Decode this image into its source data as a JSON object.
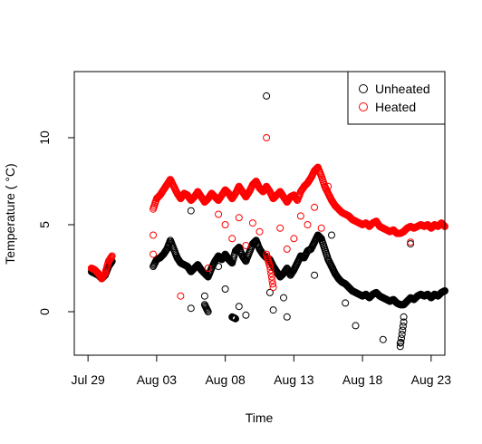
{
  "chart_data": {
    "type": "scatter",
    "title": "",
    "xlabel": "Time",
    "ylabel": "Temperature ( °C)",
    "x_start": "2023-07-28",
    "x_end": "2023-08-24",
    "x_ticks": [
      "Jul 29",
      "Aug 03",
      "Aug 08",
      "Aug 13",
      "Aug 18",
      "Aug 23"
    ],
    "x_tick_dates": [
      "2023-07-29",
      "2023-08-03",
      "2023-08-08",
      "2023-08-13",
      "2023-08-18",
      "2023-08-23"
    ],
    "ylim": [
      -2.5,
      13.8
    ],
    "y_ticks": [
      0,
      5,
      10
    ],
    "y_tick_labels": [
      "0",
      "5",
      "10"
    ],
    "grid": false,
    "legend_position": "top-right",
    "series": [
      {
        "name": "Unheated",
        "color": "#000000",
        "marker": "open-circle",
        "points": [
          [
            "2023-07-29 06:00",
            2.3
          ],
          [
            "2023-07-29 12:00",
            2.2
          ],
          [
            "2023-07-29 18:00",
            2.1
          ],
          [
            "2023-07-30 00:00",
            1.9
          ],
          [
            "2023-07-30 06:00",
            2.1
          ],
          [
            "2023-07-30 12:00",
            2.6
          ],
          [
            "2023-07-30 18:00",
            2.9
          ],
          [
            "2023-08-02 18:00",
            2.6
          ],
          [
            "2023-08-03 00:00",
            3.0
          ],
          [
            "2023-08-03 06:00",
            3.1
          ],
          [
            "2023-08-03 12:00",
            3.3
          ],
          [
            "2023-08-03 18:00",
            3.6
          ],
          [
            "2023-08-04 00:00",
            4.1
          ],
          [
            "2023-08-04 06:00",
            3.6
          ],
          [
            "2023-08-04 12:00",
            3.1
          ],
          [
            "2023-08-04 18:00",
            2.8
          ],
          [
            "2023-08-05 00:00",
            2.7
          ],
          [
            "2023-08-05 06:00",
            2.6
          ],
          [
            "2023-08-05 12:00",
            2.3
          ],
          [
            "2023-08-05 18:00",
            2.5
          ],
          [
            "2023-08-06 00:00",
            2.7
          ],
          [
            "2023-08-06 06:00",
            2.4
          ],
          [
            "2023-08-06 12:00",
            2.2
          ],
          [
            "2023-08-06 18:00",
            2.0
          ],
          [
            "2023-08-07 00:00",
            2.5
          ],
          [
            "2023-08-07 06:00",
            2.9
          ],
          [
            "2023-08-07 12:00",
            3.2
          ],
          [
            "2023-08-07 18:00",
            3.0
          ],
          [
            "2023-08-08 00:00",
            3.3
          ],
          [
            "2023-08-08 06:00",
            3.0
          ],
          [
            "2023-08-08 12:00",
            2.8
          ],
          [
            "2023-08-08 18:00",
            3.5
          ],
          [
            "2023-08-09 00:00",
            3.7
          ],
          [
            "2023-08-09 06:00",
            3.2
          ],
          [
            "2023-08-09 12:00",
            2.9
          ],
          [
            "2023-08-09 18:00",
            3.4
          ],
          [
            "2023-08-10 00:00",
            3.9
          ],
          [
            "2023-08-10 06:00",
            4.1
          ],
          [
            "2023-08-10 12:00",
            3.6
          ],
          [
            "2023-08-10 18:00",
            3.3
          ],
          [
            "2023-08-11 00:00",
            3.1
          ],
          [
            "2023-08-11 06:00",
            3.0
          ],
          [
            "2023-08-11 12:00",
            2.6
          ],
          [
            "2023-08-11 18:00",
            2.3
          ],
          [
            "2023-08-12 00:00",
            2.0
          ],
          [
            "2023-08-12 06:00",
            2.2
          ],
          [
            "2023-08-12 12:00",
            2.5
          ],
          [
            "2023-08-12 18:00",
            2.1
          ],
          [
            "2023-08-13 00:00",
            2.4
          ],
          [
            "2023-08-13 06:00",
            2.8
          ],
          [
            "2023-08-13 12:00",
            3.2
          ],
          [
            "2023-08-13 18:00",
            3.1
          ],
          [
            "2023-08-14 00:00",
            3.5
          ],
          [
            "2023-08-14 06:00",
            3.6
          ],
          [
            "2023-08-14 12:00",
            4.0
          ],
          [
            "2023-08-14 18:00",
            4.4
          ],
          [
            "2023-08-15 00:00",
            4.2
          ],
          [
            "2023-08-15 06:00",
            3.6
          ],
          [
            "2023-08-15 12:00",
            3.0
          ],
          [
            "2023-08-15 18:00",
            2.6
          ],
          [
            "2023-08-16 00:00",
            2.2
          ],
          [
            "2023-08-16 06:00",
            1.9
          ],
          [
            "2023-08-16 12:00",
            1.7
          ],
          [
            "2023-08-16 18:00",
            1.6
          ],
          [
            "2023-08-17 00:00",
            1.4
          ],
          [
            "2023-08-17 06:00",
            1.2
          ],
          [
            "2023-08-17 12:00",
            1.1
          ],
          [
            "2023-08-17 18:00",
            1.0
          ],
          [
            "2023-08-18 00:00",
            0.9
          ],
          [
            "2023-08-18 06:00",
            1.0
          ],
          [
            "2023-08-18 12:00",
            0.8
          ],
          [
            "2023-08-18 18:00",
            1.0
          ],
          [
            "2023-08-19 00:00",
            1.1
          ],
          [
            "2023-08-19 06:00",
            0.9
          ],
          [
            "2023-08-19 12:00",
            0.8
          ],
          [
            "2023-08-19 18:00",
            0.7
          ],
          [
            "2023-08-20 00:00",
            0.6
          ],
          [
            "2023-08-20 06:00",
            0.7
          ],
          [
            "2023-08-20 12:00",
            0.5
          ],
          [
            "2023-08-20 18:00",
            0.4
          ],
          [
            "2023-08-21 00:00",
            0.4
          ],
          [
            "2023-08-21 06:00",
            0.6
          ],
          [
            "2023-08-21 12:00",
            0.8
          ],
          [
            "2023-08-21 18:00",
            0.7
          ],
          [
            "2023-08-22 00:00",
            0.9
          ],
          [
            "2023-08-22 06:00",
            1.0
          ],
          [
            "2023-08-22 12:00",
            0.9
          ],
          [
            "2023-08-22 18:00",
            1.0
          ],
          [
            "2023-08-23 00:00",
            0.8
          ],
          [
            "2023-08-23 06:00",
            1.0
          ],
          [
            "2023-08-23 12:00",
            0.9
          ],
          [
            "2023-08-23 18:00",
            1.1
          ],
          [
            "2023-08-24 00:00",
            1.2
          ],
          [
            "2023-08-11 00:00",
            12.4
          ],
          [
            "2023-08-05 12:00",
            5.8
          ],
          [
            "2023-08-07 12:00",
            2.6
          ],
          [
            "2023-08-06 12:00",
            0.9
          ],
          [
            "2023-08-06 12:00",
            0.4
          ],
          [
            "2023-08-06 18:00",
            0.0
          ],
          [
            "2023-08-05 12:00",
            0.2
          ],
          [
            "2023-08-08 12:00",
            -0.3
          ],
          [
            "2023-08-08 18:00",
            -0.4
          ],
          [
            "2023-08-09 12:00",
            -0.2
          ],
          [
            "2023-08-09 00:00",
            0.3
          ],
          [
            "2023-08-08 00:00",
            1.3
          ],
          [
            "2023-08-11 12:00",
            0.1
          ],
          [
            "2023-08-12 12:00",
            -0.3
          ],
          [
            "2023-08-11 06:00",
            1.1
          ],
          [
            "2023-08-14 12:00",
            2.1
          ],
          [
            "2023-08-15 18:00",
            4.4
          ],
          [
            "2023-08-16 18:00",
            0.5
          ],
          [
            "2023-08-17 12:00",
            -0.8
          ],
          [
            "2023-08-19 12:00",
            -1.6
          ],
          [
            "2023-08-20 18:00",
            -1.8
          ],
          [
            "2023-08-20 18:00",
            -2.0
          ],
          [
            "2023-08-21 00:00",
            -0.6
          ],
          [
            "2023-08-21 00:00",
            -0.3
          ],
          [
            "2023-08-21 12:00",
            3.9
          ],
          [
            "2023-08-12 06:00",
            0.8
          ]
        ]
      },
      {
        "name": "Heated",
        "color": "#ff0000",
        "marker": "open-circle",
        "points": [
          [
            "2023-07-29 06:00",
            2.5
          ],
          [
            "2023-07-29 12:00",
            2.4
          ],
          [
            "2023-07-29 18:00",
            2.2
          ],
          [
            "2023-07-30 00:00",
            1.9
          ],
          [
            "2023-07-30 06:00",
            2.2
          ],
          [
            "2023-07-30 12:00",
            2.9
          ],
          [
            "2023-07-30 18:00",
            3.2
          ],
          [
            "2023-08-02 18:00",
            5.9
          ],
          [
            "2023-08-03 00:00",
            6.5
          ],
          [
            "2023-08-03 06:00",
            6.7
          ],
          [
            "2023-08-03 12:00",
            7.0
          ],
          [
            "2023-08-03 18:00",
            7.3
          ],
          [
            "2023-08-04 00:00",
            7.6
          ],
          [
            "2023-08-04 06:00",
            7.2
          ],
          [
            "2023-08-04 12:00",
            6.8
          ],
          [
            "2023-08-04 18:00",
            6.5
          ],
          [
            "2023-08-05 00:00",
            6.8
          ],
          [
            "2023-08-05 06:00",
            6.7
          ],
          [
            "2023-08-05 12:00",
            6.4
          ],
          [
            "2023-08-05 18:00",
            6.6
          ],
          [
            "2023-08-06 00:00",
            6.9
          ],
          [
            "2023-08-06 06:00",
            6.6
          ],
          [
            "2023-08-06 12:00",
            6.3
          ],
          [
            "2023-08-06 18:00",
            6.5
          ],
          [
            "2023-08-07 00:00",
            6.8
          ],
          [
            "2023-08-07 06:00",
            6.6
          ],
          [
            "2023-08-07 12:00",
            6.4
          ],
          [
            "2023-08-07 18:00",
            6.7
          ],
          [
            "2023-08-08 00:00",
            7.0
          ],
          [
            "2023-08-08 06:00",
            6.8
          ],
          [
            "2023-08-08 12:00",
            6.5
          ],
          [
            "2023-08-08 18:00",
            6.8
          ],
          [
            "2023-08-09 00:00",
            7.2
          ],
          [
            "2023-08-09 06:00",
            6.9
          ],
          [
            "2023-08-09 12:00",
            6.6
          ],
          [
            "2023-08-09 18:00",
            6.9
          ],
          [
            "2023-08-10 00:00",
            7.3
          ],
          [
            "2023-08-10 06:00",
            7.5
          ],
          [
            "2023-08-10 12:00",
            7.1
          ],
          [
            "2023-08-10 18:00",
            6.9
          ],
          [
            "2023-08-11 00:00",
            7.2
          ],
          [
            "2023-08-11 06:00",
            6.9
          ],
          [
            "2023-08-11 12:00",
            6.5
          ],
          [
            "2023-08-11 18:00",
            6.7
          ],
          [
            "2023-08-12 00:00",
            6.9
          ],
          [
            "2023-08-12 06:00",
            6.6
          ],
          [
            "2023-08-12 12:00",
            6.3
          ],
          [
            "2023-08-12 18:00",
            6.6
          ],
          [
            "2023-08-13 00:00",
            6.7
          ],
          [
            "2023-08-13 06:00",
            6.4
          ],
          [
            "2023-08-13 12:00",
            6.9
          ],
          [
            "2023-08-13 18:00",
            7.2
          ],
          [
            "2023-08-14 00:00",
            7.4
          ],
          [
            "2023-08-14 06:00",
            7.7
          ],
          [
            "2023-08-14 12:00",
            8.1
          ],
          [
            "2023-08-14 18:00",
            8.3
          ],
          [
            "2023-08-15 00:00",
            7.8
          ],
          [
            "2023-08-15 06:00",
            7.2
          ],
          [
            "2023-08-15 12:00",
            6.8
          ],
          [
            "2023-08-15 18:00",
            6.4
          ],
          [
            "2023-08-16 00:00",
            6.1
          ],
          [
            "2023-08-16 06:00",
            5.9
          ],
          [
            "2023-08-16 12:00",
            5.7
          ],
          [
            "2023-08-16 18:00",
            5.6
          ],
          [
            "2023-08-17 00:00",
            5.5
          ],
          [
            "2023-08-17 06:00",
            5.3
          ],
          [
            "2023-08-17 12:00",
            5.2
          ],
          [
            "2023-08-17 18:00",
            5.1
          ],
          [
            "2023-08-18 00:00",
            5.0
          ],
          [
            "2023-08-18 06:00",
            5.1
          ],
          [
            "2023-08-18 12:00",
            4.9
          ],
          [
            "2023-08-18 18:00",
            5.1
          ],
          [
            "2023-08-19 00:00",
            5.2
          ],
          [
            "2023-08-19 06:00",
            4.9
          ],
          [
            "2023-08-19 12:00",
            4.8
          ],
          [
            "2023-08-19 18:00",
            4.7
          ],
          [
            "2023-08-20 00:00",
            4.6
          ],
          [
            "2023-08-20 06:00",
            4.7
          ],
          [
            "2023-08-20 12:00",
            4.5
          ],
          [
            "2023-08-20 18:00",
            4.5
          ],
          [
            "2023-08-21 00:00",
            4.6
          ],
          [
            "2023-08-21 06:00",
            4.8
          ],
          [
            "2023-08-21 12:00",
            4.9
          ],
          [
            "2023-08-21 18:00",
            4.8
          ],
          [
            "2023-08-22 00:00",
            4.9
          ],
          [
            "2023-08-22 06:00",
            5.0
          ],
          [
            "2023-08-22 12:00",
            4.9
          ],
          [
            "2023-08-22 18:00",
            5.0
          ],
          [
            "2023-08-23 00:00",
            4.8
          ],
          [
            "2023-08-23 06:00",
            5.0
          ],
          [
            "2023-08-23 12:00",
            4.9
          ],
          [
            "2023-08-23 18:00",
            5.1
          ],
          [
            "2023-08-24 00:00",
            4.9
          ],
          [
            "2023-08-11 00:00",
            10.0
          ],
          [
            "2023-08-02 18:00",
            4.4
          ],
          [
            "2023-08-02 18:00",
            3.3
          ],
          [
            "2023-08-04 18:00",
            0.9
          ],
          [
            "2023-08-06 18:00",
            2.5
          ],
          [
            "2023-08-07 12:00",
            5.6
          ],
          [
            "2023-08-08 00:00",
            5.0
          ],
          [
            "2023-08-08 12:00",
            4.2
          ],
          [
            "2023-08-09 00:00",
            5.4
          ],
          [
            "2023-08-09 12:00",
            3.8
          ],
          [
            "2023-08-10 00:00",
            5.1
          ],
          [
            "2023-08-10 12:00",
            4.6
          ],
          [
            "2023-08-11 00:00",
            3.3
          ],
          [
            "2023-08-11 06:00",
            2.6
          ],
          [
            "2023-08-11 12:00",
            1.4
          ],
          [
            "2023-08-12 00:00",
            4.8
          ],
          [
            "2023-08-12 12:00",
            3.6
          ],
          [
            "2023-08-13 00:00",
            4.2
          ],
          [
            "2023-08-13 12:00",
            5.5
          ],
          [
            "2023-08-14 00:00",
            5.0
          ],
          [
            "2023-08-14 12:00",
            6.0
          ],
          [
            "2023-08-15 00:00",
            4.8
          ],
          [
            "2023-08-15 12:00",
            7.2
          ],
          [
            "2023-08-21 12:00",
            4.0
          ]
        ]
      }
    ]
  }
}
